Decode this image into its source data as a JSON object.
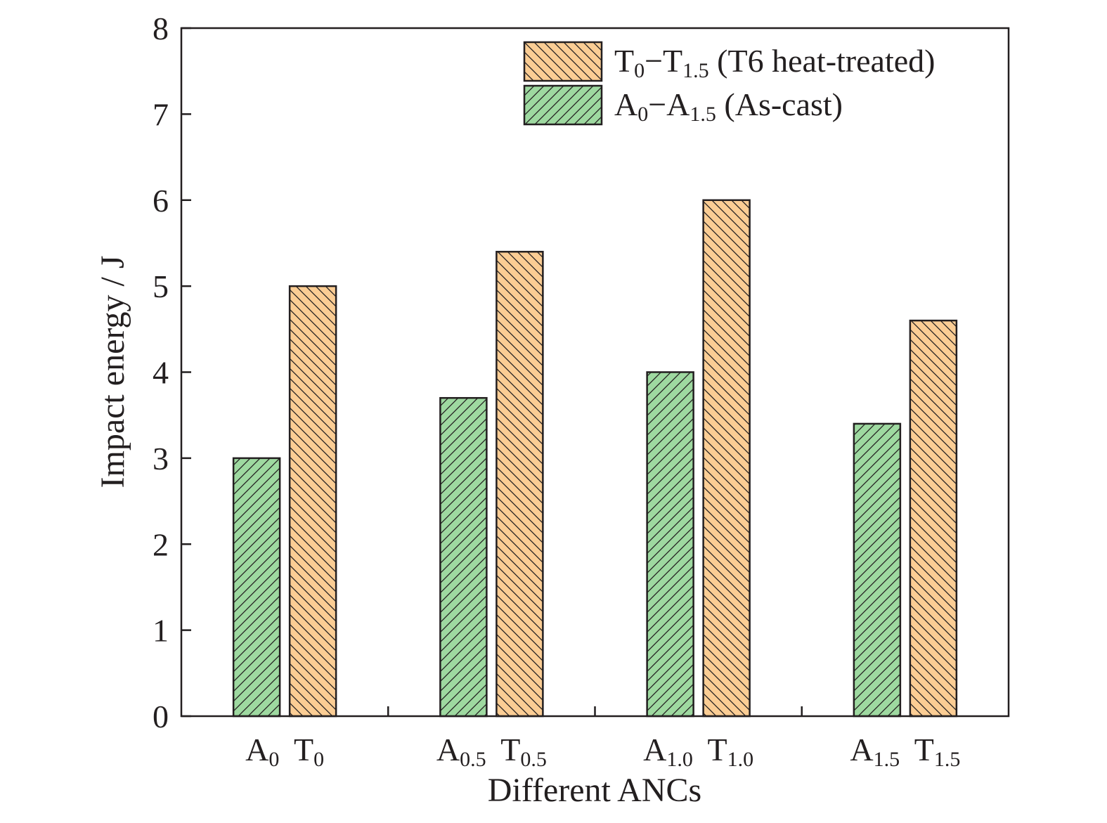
{
  "chart_data": {
    "type": "bar",
    "xlabel": "Different ANCs",
    "ylabel": "Impact energy / J",
    "ylim": [
      0,
      8
    ],
    "yticks": [
      "0",
      "1",
      "2",
      "3",
      "4",
      "5",
      "6",
      "7",
      "8"
    ],
    "grid": false,
    "legend_position": "top-right",
    "categories": [
      [
        {
          "main": "A",
          "sub": "0"
        },
        {
          "main": "T",
          "sub": "0"
        }
      ],
      [
        {
          "main": "A",
          "sub": "0.5"
        },
        {
          "main": "T",
          "sub": "0.5"
        }
      ],
      [
        {
          "main": "A",
          "sub": "1.0"
        },
        {
          "main": "T",
          "sub": "1.0"
        }
      ],
      [
        {
          "main": "A",
          "sub": "1.5"
        },
        {
          "main": "T",
          "sub": "1.5"
        }
      ]
    ],
    "series": [
      {
        "name": "A0−A1.5 (As-cast)",
        "legend_parts": [
          {
            "t": "A"
          },
          {
            "t": "0",
            "sub": true
          },
          {
            "t": "−A"
          },
          {
            "t": "1.5",
            "sub": true
          },
          {
            "t": " (As-cast)"
          }
        ],
        "color": "#9ed9a0",
        "hatch": "forward-diagonal",
        "values": [
          3.0,
          3.7,
          4.0,
          3.4
        ]
      },
      {
        "name": "T0−T1.5 (T6 heat-treated)",
        "legend_parts": [
          {
            "t": "T"
          },
          {
            "t": "0",
            "sub": true
          },
          {
            "t": "−T"
          },
          {
            "t": "1.5",
            "sub": true
          },
          {
            "t": " (T6 heat-treated)"
          }
        ],
        "color": "#fbcd94",
        "hatch": "back-diagonal",
        "values": [
          5.0,
          5.4,
          6.0,
          4.6
        ]
      }
    ],
    "legend_order": [
      1,
      0
    ]
  }
}
